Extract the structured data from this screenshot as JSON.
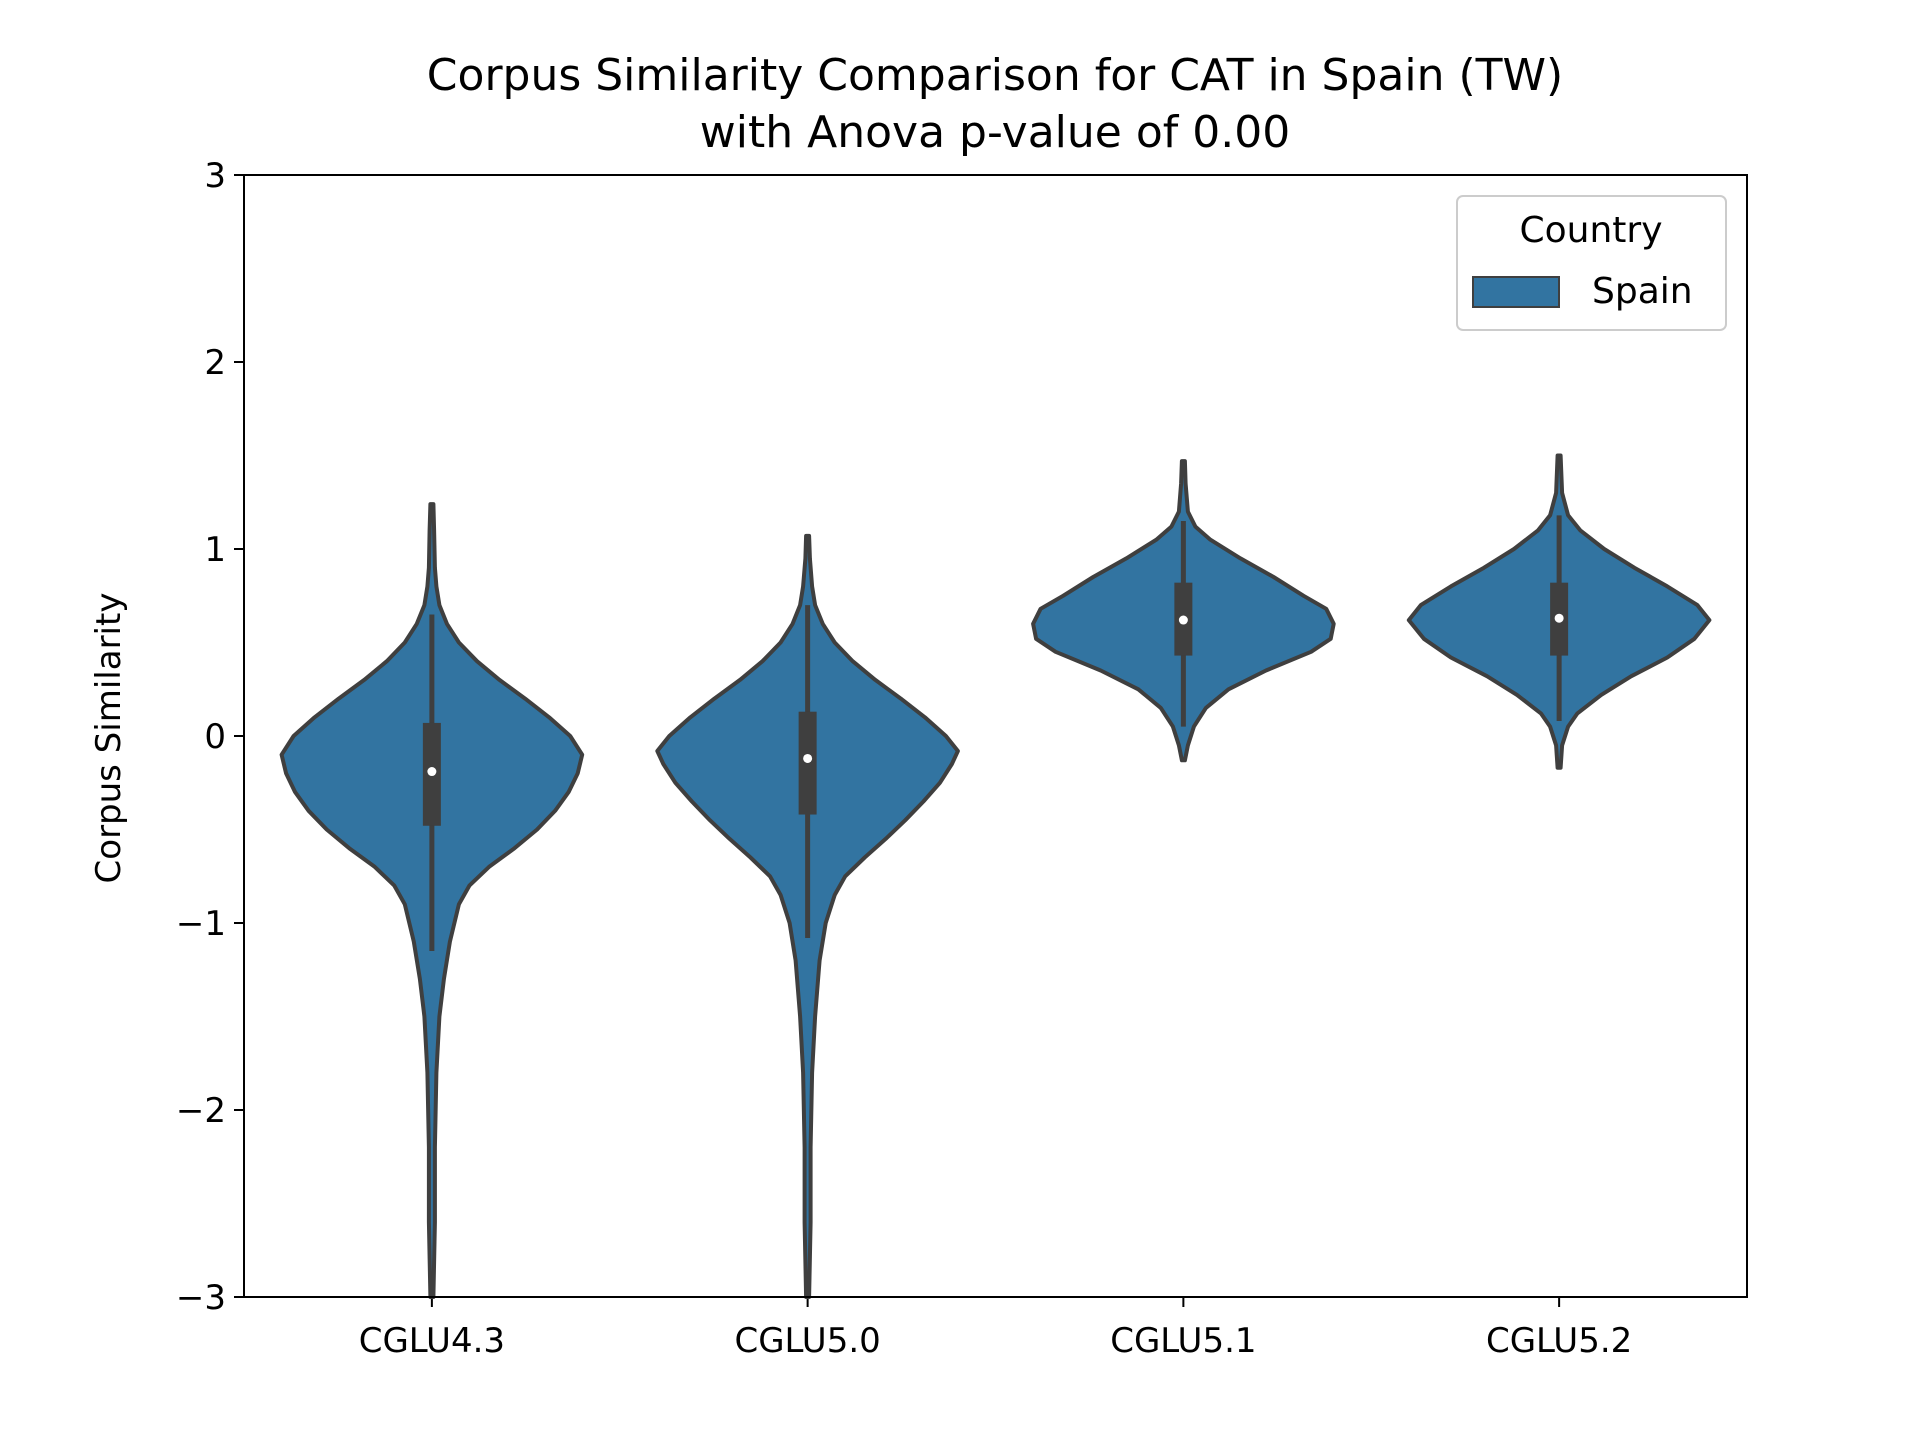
{
  "chart_data": {
    "type": "violin",
    "title_lines": [
      "Corpus Similarity Comparison for CAT in Spain (TW)",
      "with Anova p-value of 0.00"
    ],
    "xlabel": "",
    "ylabel": "Corpus Similarity",
    "ylim": [
      -3,
      3
    ],
    "yticks": [
      -3,
      -2,
      -1,
      0,
      1,
      2,
      3
    ],
    "ytick_labels": [
      "−3",
      "−2",
      "−1",
      "0",
      "1",
      "2",
      "3"
    ],
    "categories": [
      "CGLU4.3",
      "CGLU5.0",
      "CGLU5.1",
      "CGLU5.2"
    ],
    "fill_color": "#3274a1",
    "edge_color": "#3f3f3f",
    "legend": {
      "title": "Country",
      "entries": [
        "Spain"
      ],
      "position": "upper right"
    },
    "series": [
      {
        "category": "CGLU4.3",
        "median": -0.19,
        "q1": -0.48,
        "q3": 0.07,
        "whisker_low": -1.15,
        "whisker_high": 0.65,
        "profile": [
          [
            -3.0,
            0.01
          ],
          [
            -2.6,
            0.02
          ],
          [
            -2.2,
            0.02
          ],
          [
            -1.8,
            0.03
          ],
          [
            -1.5,
            0.05
          ],
          [
            -1.3,
            0.08
          ],
          [
            -1.1,
            0.12
          ],
          [
            -0.9,
            0.18
          ],
          [
            -0.8,
            0.25
          ],
          [
            -0.7,
            0.38
          ],
          [
            -0.6,
            0.55
          ],
          [
            -0.5,
            0.7
          ],
          [
            -0.4,
            0.82
          ],
          [
            -0.3,
            0.91
          ],
          [
            -0.2,
            0.97
          ],
          [
            -0.1,
            1.0
          ],
          [
            0.0,
            0.92
          ],
          [
            0.1,
            0.78
          ],
          [
            0.2,
            0.62
          ],
          [
            0.3,
            0.45
          ],
          [
            0.4,
            0.3
          ],
          [
            0.5,
            0.18
          ],
          [
            0.6,
            0.1
          ],
          [
            0.7,
            0.05
          ],
          [
            0.8,
            0.03
          ],
          [
            0.9,
            0.02
          ],
          [
            1.1,
            0.015
          ],
          [
            1.24,
            0.01
          ]
        ]
      },
      {
        "category": "CGLU5.0",
        "median": -0.12,
        "q1": -0.42,
        "q3": 0.13,
        "whisker_low": -1.08,
        "whisker_high": 0.7,
        "profile": [
          [
            -3.0,
            0.01
          ],
          [
            -2.6,
            0.02
          ],
          [
            -2.2,
            0.02
          ],
          [
            -1.8,
            0.03
          ],
          [
            -1.5,
            0.05
          ],
          [
            -1.2,
            0.08
          ],
          [
            -1.0,
            0.12
          ],
          [
            -0.85,
            0.18
          ],
          [
            -0.75,
            0.25
          ],
          [
            -0.65,
            0.38
          ],
          [
            -0.55,
            0.52
          ],
          [
            -0.45,
            0.65
          ],
          [
            -0.35,
            0.77
          ],
          [
            -0.25,
            0.88
          ],
          [
            -0.15,
            0.96
          ],
          [
            -0.08,
            1.0
          ],
          [
            0.0,
            0.92
          ],
          [
            0.1,
            0.78
          ],
          [
            0.2,
            0.62
          ],
          [
            0.3,
            0.45
          ],
          [
            0.4,
            0.3
          ],
          [
            0.5,
            0.18
          ],
          [
            0.6,
            0.1
          ],
          [
            0.7,
            0.05
          ],
          [
            0.8,
            0.03
          ],
          [
            0.95,
            0.015
          ],
          [
            1.07,
            0.01
          ]
        ]
      },
      {
        "category": "CGLU5.1",
        "median": 0.62,
        "q1": 0.43,
        "q3": 0.82,
        "whisker_low": 0.05,
        "whisker_high": 1.15,
        "profile": [
          [
            -0.13,
            0.01
          ],
          [
            -0.05,
            0.03
          ],
          [
            0.05,
            0.07
          ],
          [
            0.15,
            0.15
          ],
          [
            0.25,
            0.3
          ],
          [
            0.35,
            0.55
          ],
          [
            0.45,
            0.85
          ],
          [
            0.52,
            0.98
          ],
          [
            0.6,
            1.0
          ],
          [
            0.68,
            0.95
          ],
          [
            0.75,
            0.8
          ],
          [
            0.85,
            0.6
          ],
          [
            0.95,
            0.38
          ],
          [
            1.05,
            0.18
          ],
          [
            1.12,
            0.08
          ],
          [
            1.2,
            0.03
          ],
          [
            1.35,
            0.015
          ],
          [
            1.47,
            0.01
          ]
        ]
      },
      {
        "category": "CGLU5.2",
        "median": 0.63,
        "q1": 0.43,
        "q3": 0.82,
        "whisker_low": 0.08,
        "whisker_high": 1.18,
        "profile": [
          [
            -0.17,
            0.01
          ],
          [
            -0.05,
            0.02
          ],
          [
            0.05,
            0.06
          ],
          [
            0.12,
            0.12
          ],
          [
            0.22,
            0.28
          ],
          [
            0.32,
            0.48
          ],
          [
            0.42,
            0.72
          ],
          [
            0.52,
            0.9
          ],
          [
            0.62,
            1.0
          ],
          [
            0.7,
            0.92
          ],
          [
            0.8,
            0.72
          ],
          [
            0.9,
            0.5
          ],
          [
            1.0,
            0.3
          ],
          [
            1.1,
            0.14
          ],
          [
            1.18,
            0.06
          ],
          [
            1.3,
            0.02
          ],
          [
            1.5,
            0.01
          ]
        ]
      }
    ]
  }
}
